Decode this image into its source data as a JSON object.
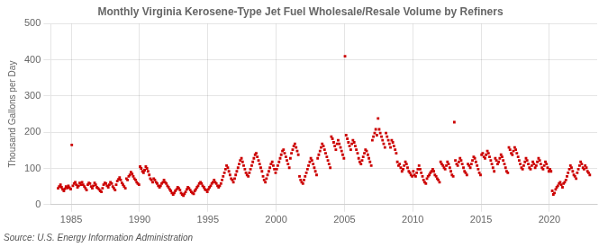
{
  "chart_data": {
    "type": "scatter",
    "title": "Monthly Virginia Kerosene-Type Jet Fuel Wholesale/Resale Volume by Refiners",
    "ylabel": "Thousand Gallons per Day",
    "source": "Source: U.S. Energy Information Administration",
    "color": "#cc0000",
    "marker": "square",
    "grid": true,
    "xlim": [
      1983.5,
      2023.5
    ],
    "ylim": [
      0,
      500
    ],
    "xticks": [
      1985,
      1990,
      1995,
      2000,
      2005,
      2010,
      2015,
      2020
    ],
    "yticks": [
      0,
      100,
      200,
      300,
      400,
      500
    ],
    "x": [
      1984.04,
      1984.12,
      1984.21,
      1984.29,
      1984.37,
      1984.46,
      1984.54,
      1984.62,
      1984.71,
      1984.79,
      1984.87,
      1984.96,
      1985.04,
      1985.12,
      1985.21,
      1985.29,
      1985.37,
      1985.46,
      1985.54,
      1985.62,
      1985.71,
      1985.79,
      1985.87,
      1985.96,
      1986.04,
      1986.12,
      1986.21,
      1986.29,
      1986.37,
      1986.46,
      1986.54,
      1986.62,
      1986.71,
      1986.79,
      1986.87,
      1986.96,
      1987.04,
      1987.12,
      1987.21,
      1987.29,
      1987.37,
      1987.46,
      1987.54,
      1987.62,
      1987.71,
      1987.79,
      1987.87,
      1987.96,
      1988.04,
      1988.12,
      1988.21,
      1988.29,
      1988.37,
      1988.46,
      1988.54,
      1988.62,
      1988.71,
      1988.79,
      1988.87,
      1988.96,
      1989.04,
      1989.12,
      1989.21,
      1989.29,
      1989.37,
      1989.46,
      1989.54,
      1989.62,
      1989.71,
      1989.79,
      1989.87,
      1989.96,
      1990.04,
      1990.12,
      1990.21,
      1990.29,
      1990.37,
      1990.46,
      1990.54,
      1990.62,
      1990.71,
      1990.79,
      1990.87,
      1990.96,
      1991.04,
      1991.12,
      1991.21,
      1991.29,
      1991.37,
      1991.46,
      1991.54,
      1991.62,
      1991.71,
      1991.79,
      1991.87,
      1991.96,
      1992.04,
      1992.12,
      1992.21,
      1992.29,
      1992.37,
      1992.46,
      1992.54,
      1992.62,
      1992.71,
      1992.79,
      1992.87,
      1992.96,
      1993.04,
      1993.12,
      1993.21,
      1993.29,
      1993.37,
      1993.46,
      1993.54,
      1993.62,
      1993.71,
      1993.79,
      1993.87,
      1993.96,
      1994.04,
      1994.12,
      1994.21,
      1994.29,
      1994.37,
      1994.46,
      1994.54,
      1994.62,
      1994.71,
      1994.79,
      1994.87,
      1994.96,
      1995.04,
      1995.12,
      1995.21,
      1995.29,
      1995.37,
      1995.46,
      1995.54,
      1995.62,
      1995.71,
      1995.79,
      1995.87,
      1995.96,
      1996.04,
      1996.12,
      1996.21,
      1996.29,
      1996.37,
      1996.46,
      1996.54,
      1996.62,
      1996.71,
      1996.79,
      1996.87,
      1996.96,
      1997.04,
      1997.12,
      1997.21,
      1997.29,
      1997.37,
      1997.46,
      1997.54,
      1997.62,
      1997.71,
      1997.79,
      1997.87,
      1997.96,
      1998.04,
      1998.12,
      1998.21,
      1998.29,
      1998.37,
      1998.46,
      1998.54,
      1998.62,
      1998.71,
      1998.79,
      1998.87,
      1998.96,
      1999.04,
      1999.12,
      1999.21,
      1999.29,
      1999.37,
      1999.46,
      1999.54,
      1999.62,
      1999.71,
      1999.79,
      1999.87,
      1999.96,
      2000.04,
      2000.12,
      2000.21,
      2000.29,
      2000.37,
      2000.46,
      2000.54,
      2000.62,
      2000.71,
      2000.79,
      2000.87,
      2000.96,
      2001.04,
      2001.12,
      2001.21,
      2001.29,
      2001.37,
      2001.46,
      2001.54,
      2001.62,
      2001.71,
      2001.79,
      2001.87,
      2001.96,
      2002.04,
      2002.12,
      2002.21,
      2002.29,
      2002.37,
      2002.46,
      2002.54,
      2002.62,
      2002.71,
      2002.79,
      2002.87,
      2002.96,
      2003.04,
      2003.12,
      2003.21,
      2003.29,
      2003.37,
      2003.46,
      2003.54,
      2003.62,
      2003.71,
      2003.79,
      2003.87,
      2003.96,
      2004.04,
      2004.12,
      2004.21,
      2004.29,
      2004.37,
      2004.46,
      2004.54,
      2004.62,
      2004.71,
      2004.79,
      2004.87,
      2004.96,
      2005.04,
      2005.12,
      2005.21,
      2005.29,
      2005.37,
      2005.46,
      2005.54,
      2005.62,
      2005.71,
      2005.79,
      2005.87,
      2005.96,
      2006.04,
      2006.12,
      2006.21,
      2006.29,
      2006.37,
      2006.46,
      2006.54,
      2006.62,
      2006.71,
      2006.79,
      2006.87,
      2006.96,
      2007.04,
      2007.12,
      2007.21,
      2007.29,
      2007.37,
      2007.46,
      2007.54,
      2007.62,
      2007.71,
      2007.79,
      2007.87,
      2007.96,
      2008.04,
      2008.12,
      2008.21,
      2008.29,
      2008.37,
      2008.46,
      2008.54,
      2008.62,
      2008.71,
      2008.79,
      2008.87,
      2008.96,
      2009.04,
      2009.12,
      2009.21,
      2009.29,
      2009.37,
      2009.46,
      2009.54,
      2009.62,
      2009.71,
      2009.79,
      2009.87,
      2009.96,
      2010.04,
      2010.12,
      2010.21,
      2010.29,
      2010.37,
      2010.46,
      2010.54,
      2010.62,
      2010.71,
      2010.79,
      2010.87,
      2010.96,
      2011.04,
      2011.12,
      2011.21,
      2011.29,
      2011.37,
      2011.46,
      2011.54,
      2011.62,
      2011.71,
      2011.79,
      2011.87,
      2011.96,
      2012.04,
      2012.12,
      2012.21,
      2012.29,
      2012.37,
      2012.46,
      2012.54,
      2012.62,
      2012.71,
      2012.79,
      2012.87,
      2012.96,
      2013.04,
      2013.12,
      2013.21,
      2013.29,
      2013.37,
      2013.46,
      2013.54,
      2013.62,
      2013.71,
      2013.79,
      2013.87,
      2013.96,
      2014.04,
      2014.12,
      2014.21,
      2014.29,
      2014.37,
      2014.46,
      2014.54,
      2014.62,
      2014.71,
      2014.79,
      2014.87,
      2014.96,
      2015.04,
      2015.12,
      2015.21,
      2015.29,
      2015.37,
      2015.46,
      2015.54,
      2015.62,
      2015.71,
      2015.79,
      2015.87,
      2015.96,
      2016.04,
      2016.12,
      2016.21,
      2016.29,
      2016.37,
      2016.46,
      2016.54,
      2016.62,
      2016.71,
      2016.79,
      2016.87,
      2016.96,
      2017.04,
      2017.12,
      2017.21,
      2017.29,
      2017.37,
      2017.46,
      2017.54,
      2017.62,
      2017.71,
      2017.79,
      2017.87,
      2017.96,
      2018.04,
      2018.12,
      2018.21,
      2018.29,
      2018.37,
      2018.46,
      2018.54,
      2018.62,
      2018.71,
      2018.79,
      2018.87,
      2018.96,
      2019.04,
      2019.12,
      2019.21,
      2019.29,
      2019.37,
      2019.46,
      2019.54,
      2019.62,
      2019.71,
      2019.79,
      2019.87,
      2019.96,
      2020.04,
      2020.12,
      2020.21,
      2020.29,
      2020.37,
      2020.46,
      2020.54,
      2020.62,
      2020.71,
      2020.79,
      2020.87,
      2020.96,
      2021.04,
      2021.12,
      2021.21,
      2021.29,
      2021.37,
      2021.46,
      2021.54,
      2021.62,
      2021.71,
      2021.79,
      2021.87,
      2021.96,
      2022.04,
      2022.12,
      2022.21,
      2022.29,
      2022.37,
      2022.46,
      2022.54,
      2022.62,
      2022.71,
      2022.79,
      2022.87,
      2022.96
    ],
    "values": [
      45,
      50,
      55,
      48,
      42,
      38,
      44,
      50,
      46,
      52,
      47,
      43,
      165,
      52,
      58,
      62,
      55,
      48,
      52,
      60,
      55,
      62,
      55,
      50,
      45,
      40,
      55,
      60,
      58,
      50,
      45,
      52,
      60,
      55,
      48,
      45,
      42,
      38,
      35,
      45,
      55,
      60,
      58,
      52,
      48,
      55,
      62,
      58,
      50,
      45,
      40,
      55,
      65,
      70,
      75,
      68,
      60,
      55,
      50,
      45,
      72,
      68,
      78,
      82,
      90,
      85,
      78,
      72,
      68,
      62,
      58,
      55,
      105,
      100,
      92,
      88,
      95,
      105,
      100,
      92,
      82,
      72,
      68,
      62,
      72,
      68,
      62,
      58,
      52,
      48,
      52,
      58,
      62,
      68,
      62,
      58,
      52,
      48,
      42,
      38,
      32,
      28,
      32,
      38,
      42,
      48,
      45,
      40,
      32,
      28,
      25,
      30,
      35,
      42,
      48,
      45,
      40,
      35,
      32,
      30,
      38,
      42,
      48,
      52,
      58,
      62,
      58,
      52,
      48,
      42,
      40,
      35,
      42,
      48,
      52,
      58,
      62,
      68,
      62,
      58,
      52,
      48,
      52,
      58,
      68,
      78,
      88,
      98,
      108,
      102,
      92,
      82,
      72,
      68,
      62,
      72,
      82,
      92,
      102,
      112,
      122,
      128,
      118,
      108,
      98,
      88,
      82,
      78,
      88,
      98,
      108,
      118,
      128,
      138,
      142,
      132,
      122,
      112,
      102,
      92,
      78,
      68,
      62,
      72,
      82,
      92,
      102,
      112,
      118,
      108,
      98,
      88,
      98,
      108,
      118,
      128,
      138,
      148,
      152,
      142,
      132,
      122,
      112,
      102,
      128,
      142,
      152,
      162,
      168,
      158,
      148,
      138,
      78,
      68,
      62,
      58,
      68,
      78,
      88,
      98,
      108,
      118,
      128,
      122,
      112,
      102,
      92,
      82,
      128,
      138,
      148,
      158,
      168,
      162,
      152,
      142,
      132,
      122,
      112,
      102,
      188,
      182,
      172,
      162,
      152,
      168,
      178,
      168,
      158,
      148,
      138,
      128,
      410,
      192,
      182,
      172,
      162,
      152,
      168,
      178,
      172,
      162,
      152,
      142,
      128,
      118,
      112,
      122,
      132,
      142,
      152,
      148,
      138,
      128,
      118,
      108,
      178,
      188,
      198,
      208,
      192,
      238,
      208,
      198,
      188,
      178,
      168,
      158,
      198,
      188,
      178,
      168,
      158,
      178,
      172,
      162,
      152,
      142,
      118,
      108,
      112,
      102,
      92,
      98,
      108,
      118,
      112,
      102,
      92,
      88,
      82,
      78,
      92,
      82,
      78,
      88,
      98,
      108,
      98,
      88,
      78,
      68,
      62,
      58,
      72,
      78,
      82,
      88,
      92,
      98,
      92,
      82,
      78,
      72,
      68,
      62,
      118,
      112,
      108,
      102,
      98,
      108,
      118,
      112,
      102,
      92,
      82,
      78,
      228,
      122,
      112,
      108,
      118,
      128,
      122,
      112,
      102,
      92,
      88,
      82,
      112,
      108,
      102,
      112,
      122,
      132,
      128,
      118,
      108,
      98,
      88,
      82,
      138,
      142,
      132,
      128,
      138,
      148,
      142,
      132,
      122,
      112,
      102,
      92,
      128,
      122,
      112,
      118,
      128,
      138,
      132,
      122,
      112,
      102,
      92,
      88,
      158,
      152,
      142,
      138,
      148,
      158,
      152,
      142,
      132,
      122,
      112,
      102,
      98,
      108,
      118,
      128,
      122,
      112,
      102,
      98,
      108,
      118,
      112,
      102,
      108,
      118,
      128,
      122,
      112,
      102,
      98,
      108,
      118,
      112,
      102,
      92,
      98,
      92,
      38,
      28,
      32,
      42,
      48,
      52,
      58,
      62,
      55,
      48,
      58,
      62,
      68,
      78,
      88,
      98,
      108,
      102,
      92,
      82,
      78,
      72,
      88,
      98,
      108,
      118,
      112,
      102,
      98,
      108,
      102,
      92,
      88,
      82
    ]
  }
}
